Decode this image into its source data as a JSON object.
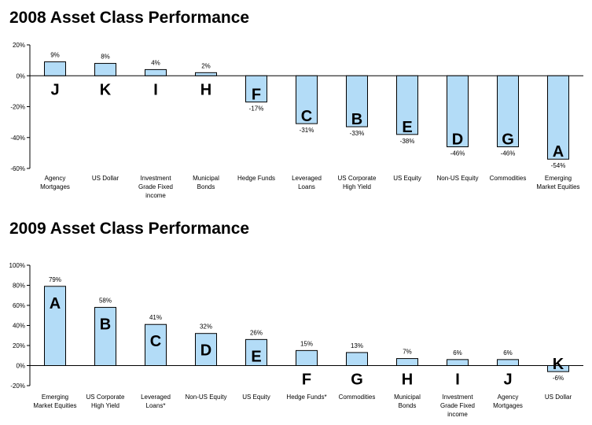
{
  "chart_data": [
    {
      "type": "bar",
      "title": "2008 Asset Class Performance",
      "categories": [
        [
          "Agency",
          "Mortgages"
        ],
        [
          "US Dollar"
        ],
        [
          "Investment",
          "Grade Fixed",
          "income"
        ],
        [
          "Municipal",
          "Bonds"
        ],
        [
          "Hedge Funds"
        ],
        [
          "Leveraged",
          "Loans"
        ],
        [
          "US Corporate",
          "High Yield"
        ],
        [
          "US Equity"
        ],
        [
          "Non-US Equity"
        ],
        [
          "Commodities"
        ],
        [
          "Emerging",
          "Market Equities"
        ]
      ],
      "values": [
        9,
        8,
        4,
        2,
        -17,
        -31,
        -33,
        -38,
        -46,
        -46,
        -54
      ],
      "value_labels": [
        "9%",
        "8%",
        "4%",
        "2%",
        "-17%",
        "-31%",
        "-33%",
        "-38%",
        "-46%",
        "-46%",
        "-54%"
      ],
      "letters": [
        "J",
        "K",
        "I",
        "H",
        "F",
        "C",
        "B",
        "E",
        "D",
        "G",
        "A"
      ],
      "yticks": [
        20,
        0,
        -20,
        -40,
        -60
      ],
      "ytick_labels": [
        "20%",
        "0%",
        "-20%",
        "-40%",
        "-60%"
      ],
      "ylim": [
        -60,
        20
      ],
      "xlabel": "",
      "ylabel": "",
      "bar_color": "#b3dcf7",
      "grid": false
    },
    {
      "type": "bar",
      "title": "2009 Asset Class Performance",
      "categories": [
        [
          "Emerging",
          "Market Equities"
        ],
        [
          "US Corporate",
          "High Yield"
        ],
        [
          "Leveraged",
          "Loans*"
        ],
        [
          "Non-US Equity"
        ],
        [
          "US Equity"
        ],
        [
          "Hedge Funds*"
        ],
        [
          "Commodities"
        ],
        [
          "Municipal",
          "Bonds"
        ],
        [
          "Investment",
          "Grade Fixed",
          "income"
        ],
        [
          "Agency",
          "Mortgages"
        ],
        [
          "US Dollar"
        ]
      ],
      "values": [
        79,
        58,
        41,
        32,
        26,
        15,
        13,
        7,
        6,
        6,
        -6
      ],
      "value_labels": [
        "79%",
        "58%",
        "41%",
        "32%",
        "26%",
        "15%",
        "13%",
        "7%",
        "6%",
        "6%",
        "-6%"
      ],
      "letters": [
        "A",
        "B",
        "C",
        "D",
        "E",
        "F",
        "G",
        "H",
        "I",
        "J",
        "K"
      ],
      "yticks": [
        100,
        80,
        60,
        40,
        20,
        0,
        -20
      ],
      "ytick_labels": [
        "100%",
        "80%",
        "60%",
        "40%",
        "20%",
        "0%",
        "-20%"
      ],
      "ylim": [
        -20,
        100
      ],
      "xlabel": "",
      "ylabel": "",
      "bar_color": "#b3dcf7",
      "grid": false
    }
  ]
}
